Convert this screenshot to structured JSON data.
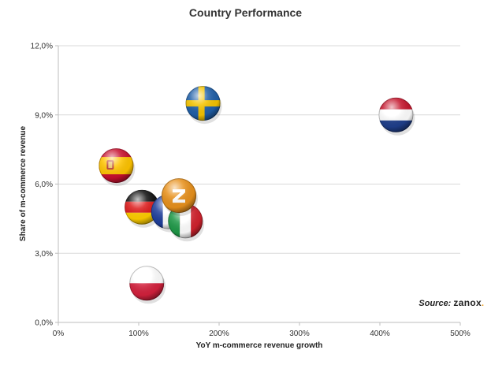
{
  "chart_data": {
    "type": "scatter",
    "title": "Country Performance",
    "xlabel": "YoY m-commerce revenue growth",
    "ylabel": "Share of m-commerce revenue",
    "xlim": [
      0,
      500
    ],
    "ylim": [
      0,
      12
    ],
    "x_ticks": [
      "0%",
      "100%",
      "200%",
      "300%",
      "400%",
      "500%"
    ],
    "y_ticks": [
      "0,0%",
      "3,0%",
      "6,0%",
      "9,0%",
      "12,0%"
    ],
    "grid": "horizontal",
    "points": [
      {
        "marker": "flag-sweden",
        "x": 180,
        "y": 9.5
      },
      {
        "marker": "flag-netherlands",
        "x": 420,
        "y": 9.0
      },
      {
        "marker": "flag-spain",
        "x": 72,
        "y": 6.8
      },
      {
        "marker": "flag-germany",
        "x": 104,
        "y": 5.0
      },
      {
        "marker": "flag-france",
        "x": 137,
        "y": 4.8
      },
      {
        "marker": "flag-italy",
        "x": 158,
        "y": 4.4
      },
      {
        "marker": "zanox-logo",
        "x": 150,
        "y": 5.5
      },
      {
        "marker": "flag-poland",
        "x": 110,
        "y": 1.7
      }
    ]
  },
  "source": {
    "label": "Source:",
    "brand": "zanox",
    "brand_dot": "."
  }
}
